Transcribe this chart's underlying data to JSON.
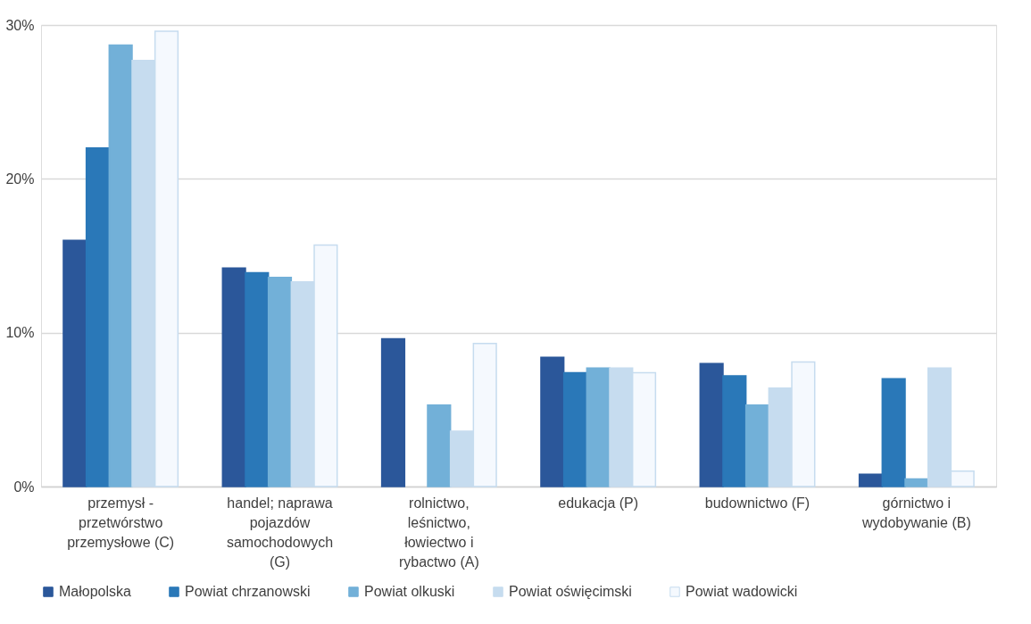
{
  "chart_data": {
    "type": "bar",
    "categories": [
      "przemysł -\nprzetwórstwo\nprzemysłowe (C)",
      "handel; naprawa\npojazdów\nsamochodowych\n(G)",
      "rolnictwo,\nleśnictwo,\nłowiectwo i\nrybactwo (A)",
      "edukacja (P)",
      "budownictwo (F)",
      "górnictwo i\nwydobywanie (B)"
    ],
    "series": [
      {
        "name": "Małopolska",
        "color": "#2b579a",
        "values": [
          16.0,
          14.2,
          9.6,
          8.4,
          8.0,
          0.8
        ]
      },
      {
        "name": "Powiat chrzanowski",
        "color": "#2a78b8",
        "values": [
          22.0,
          13.9,
          null,
          7.4,
          7.2,
          7.0
        ]
      },
      {
        "name": "Powiat olkuski",
        "color": "#72b0d8",
        "values": [
          28.7,
          13.6,
          5.3,
          7.7,
          5.3,
          0.5
        ]
      },
      {
        "name": "Powiat oświęcimski",
        "color": "#c6dcef",
        "values": [
          27.7,
          13.3,
          3.6,
          7.7,
          6.4,
          7.7
        ]
      },
      {
        "name": "Powiat wadowicki",
        "color": "#f5f9fe",
        "values": [
          29.6,
          15.7,
          9.3,
          7.4,
          8.1,
          1.0
        ]
      }
    ],
    "ylim": [
      0,
      30
    ],
    "yticks": [
      {
        "value": 0,
        "label": "0%"
      },
      {
        "value": 10,
        "label": "10%"
      },
      {
        "value": 20,
        "label": "20%"
      },
      {
        "value": 30,
        "label": "30%"
      }
    ],
    "grid": "y",
    "legend": "bottom"
  }
}
